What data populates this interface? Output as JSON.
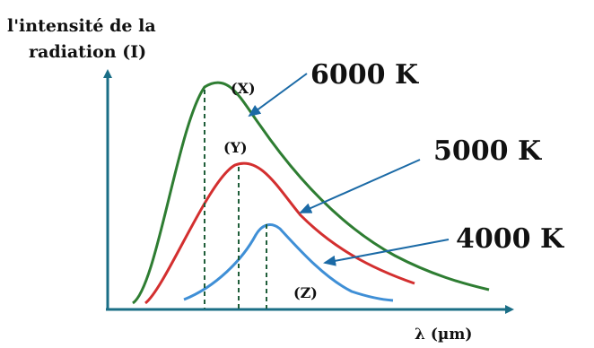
{
  "chart_data": {
    "type": "line",
    "ylabel_line1": "l'intensité de la",
    "ylabel_line2": "radiation (I)",
    "xlabel": "λ (µm)",
    "grid": false,
    "series": [
      {
        "name": "6000 K",
        "peak_label": "(X)",
        "color": "#2e7d32"
      },
      {
        "name": "5000 K",
        "peak_label": "(Y)",
        "color": "#d32f2f"
      },
      {
        "name": "4000 K",
        "peak_label": "(Z)",
        "color": "#3f8fd6"
      }
    ],
    "axis_color": "#1a6e86",
    "arrow_color": "#1b6aa6"
  }
}
